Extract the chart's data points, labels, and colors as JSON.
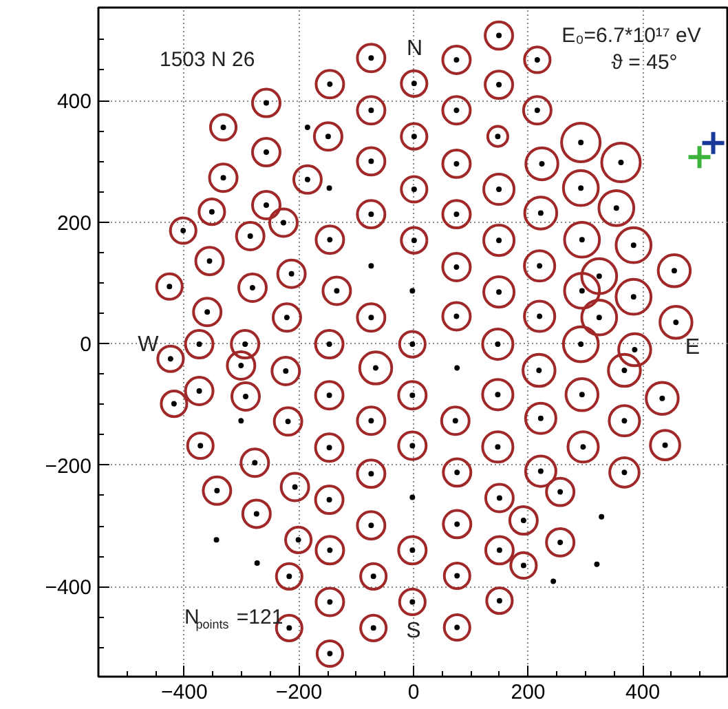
{
  "chart_data": {
    "type": "bubble",
    "annotations": [
      "1503 N 26",
      "E₀=6.7*10¹⁷ eV",
      "ϑ = 45°",
      "N",
      "W",
      "E",
      "S",
      "N$_{points}$=121"
    ],
    "xlim": [
      -550,
      550
    ],
    "ylim": [
      -548,
      553
    ],
    "xticks": [
      {
        "value": -500,
        "label": null
      },
      {
        "value": -450,
        "label": null
      },
      {
        "value": -400,
        "label": "−400"
      },
      {
        "value": -350,
        "label": null
      },
      {
        "value": -300,
        "label": null
      },
      {
        "value": -250,
        "label": null
      },
      {
        "value": -200,
        "label": "−200"
      },
      {
        "value": -150,
        "label": null
      },
      {
        "value": -100,
        "label": null
      },
      {
        "value": -50,
        "label": null
      },
      0,
      {
        "value": 50,
        "label": null
      },
      {
        "value": 100,
        "label": null
      },
      {
        "value": 150,
        "label": null
      },
      200,
      {
        "value": 250,
        "label": null
      },
      {
        "value": 300,
        "label": null
      },
      {
        "value": 350,
        "label": null
      },
      400,
      {
        "value": 450,
        "label": null
      },
      {
        "value": 500,
        "label": null
      }
    ],
    "yticks": [
      {
        "value": -500,
        "label": null
      },
      {
        "value": -450,
        "label": null
      },
      {
        "value": -400,
        "label": "−400"
      },
      {
        "value": -350,
        "label": null
      },
      {
        "value": -300,
        "label": null
      },
      {
        "value": -250,
        "label": null
      },
      {
        "value": -200,
        "label": "−200"
      },
      {
        "value": -150,
        "label": null
      },
      {
        "value": -100,
        "label": null
      },
      {
        "value": -50,
        "label": null
      },
      0,
      {
        "value": 50,
        "label": null
      },
      {
        "value": 100,
        "label": null
      },
      {
        "value": 150,
        "label": null
      },
      200,
      {
        "value": 250,
        "label": null
      },
      {
        "value": 300,
        "label": null
      },
      {
        "value": 350,
        "label": null
      },
      400,
      {
        "value": 450,
        "label": null
      },
      {
        "value": 500,
        "label": null
      }
    ],
    "grid": true,
    "series": [
      {
        "type": "bubble",
        "marker": "circle",
        "color": "#a02828",
        "x": [
          -74,
          -146,
          -257,
          -74,
          -332,
          -149,
          -257,
          -74,
          -332,
          -185,
          -257,
          -74,
          -352,
          -402,
          -285,
          -227,
          -146,
          -356,
          -426,
          -281,
          -213,
          -134,
          -360,
          -221,
          -74,
          149,
          75,
          216,
          1,
          149,
          75,
          216,
          1,
          147,
          292,
          75,
          224,
          362,
          1,
          149,
          292,
          354,
          75,
          222,
          1,
          149,
          294,
          384,
          75,
          220,
          324,
          455,
          294,
          384,
          149,
          75,
          220,
          324,
          458,
          -374,
          -294,
          -147,
          -2,
          -424,
          -301,
          -223,
          -66,
          -374,
          -418,
          -293,
          -147,
          -2,
          -219,
          -74,
          -372,
          -147,
          -2,
          -277,
          -74,
          -343,
          -207,
          -147,
          -274,
          -74,
          -201,
          -146,
          -2,
          -217,
          -70,
          -146,
          -2,
          -217,
          -70,
          -146,
          147,
          292,
          386,
          368,
          219,
          147,
          294,
          434,
          73,
          222,
          368,
          147,
          296,
          439,
          76,
          222,
          368,
          256,
          150,
          76,
          192,
          150,
          256,
          192,
          76,
          150,
          76
        ],
        "values": [
          470,
          427,
          396,
          384,
          356,
          341,
          315,
          300,
          273,
          270,
          228,
          213,
          217,
          186,
          177,
          199,
          171,
          136,
          94,
          92,
          115,
          87,
          52,
          43,
          43,
          507,
          467,
          467,
          428,
          426,
          384,
          384,
          341,
          341,
          331,
          296,
          296,
          298,
          254,
          254,
          256,
          223,
          213,
          215,
          170,
          170,
          171,
          162,
          126,
          128,
          111,
          120,
          87,
          77,
          85,
          45,
          45,
          43,
          35,
          -1,
          -1,
          -1,
          -1,
          -25,
          -36,
          -45,
          -40,
          -78,
          -99,
          -87,
          -85,
          -85,
          -128,
          -127,
          -168,
          -171,
          -168,
          -196,
          -214,
          -242,
          -236,
          -257,
          -280,
          -299,
          -323,
          -340,
          -340,
          -383,
          -383,
          -425,
          -425,
          -468,
          -468,
          -510,
          -1,
          -1,
          -10,
          -44,
          -44,
          -84,
          -84,
          -90,
          -127,
          -123,
          -127,
          -170,
          -170,
          -167,
          -212,
          -210,
          -212,
          -244,
          -254,
          -297,
          -291,
          -340,
          -327,
          -365,
          -382,
          -423,
          -467
        ],
        "sizes": [
          0.51,
          0.51,
          0.51,
          0.51,
          0.44,
          0.51,
          0.51,
          0.51,
          0.51,
          0.51,
          0.51,
          0.51,
          0.44,
          0.44,
          0.51,
          0.51,
          0.51,
          0.51,
          0.44,
          0.51,
          0.51,
          0.51,
          0.51,
          0.51,
          0.51,
          0.51,
          0.51,
          0.44,
          0.44,
          0.51,
          0.51,
          0.51,
          0.44,
          0.27,
          1,
          0.51,
          0.69,
          1,
          0.44,
          0.62,
          0.82,
          0.82,
          0.51,
          0.69,
          0.44,
          0.62,
          0.82,
          0.82,
          0.51,
          0.62,
          0.82,
          0.69,
          0.82,
          0.82,
          0.62,
          0.51,
          0.62,
          0.82,
          0.69,
          0.51,
          0.51,
          0.51,
          0.44,
          0.44,
          0.51,
          0.51,
          0.69,
          0.51,
          0.44,
          0.51,
          0.51,
          0.51,
          0.51,
          0.51,
          0.44,
          0.51,
          0.51,
          0.51,
          0.51,
          0.51,
          0.51,
          0.51,
          0.51,
          0.51,
          0.44,
          0.51,
          0.51,
          0.44,
          0.44,
          0.51,
          0.44,
          0.44,
          0.44,
          0.44,
          0.62,
          0.82,
          0.69,
          0.69,
          0.69,
          0.62,
          0.69,
          0.69,
          0.51,
          0.62,
          0.62,
          0.62,
          0.62,
          0.58,
          0.51,
          0.62,
          0.58,
          0.51,
          0.51,
          0.51,
          0.51,
          0.51,
          0.51,
          0.44,
          0.44,
          0.44,
          0.44
        ]
      },
      {
        "type": "scatter",
        "marker": "circle",
        "color": "#000000",
        "x": [
          -185,
          -147,
          -74,
          -2,
          -301,
          -2,
          -344,
          -273,
          76,
          328,
          320,
          244
        ],
        "values": [
          356,
          256,
          128,
          87,
          -127,
          -253,
          -323,
          -361,
          -40,
          -285,
          -363,
          -391
        ]
      },
      {
        "type": "scatter",
        "marker": "cross",
        "color": "#1a3a9a",
        "x": [
          523
        ],
        "values": [
          330
        ]
      },
      {
        "type": "scatter",
        "marker": "cross",
        "color": "#3cb43c",
        "x": [
          499
        ],
        "values": [
          307
        ]
      }
    ]
  }
}
